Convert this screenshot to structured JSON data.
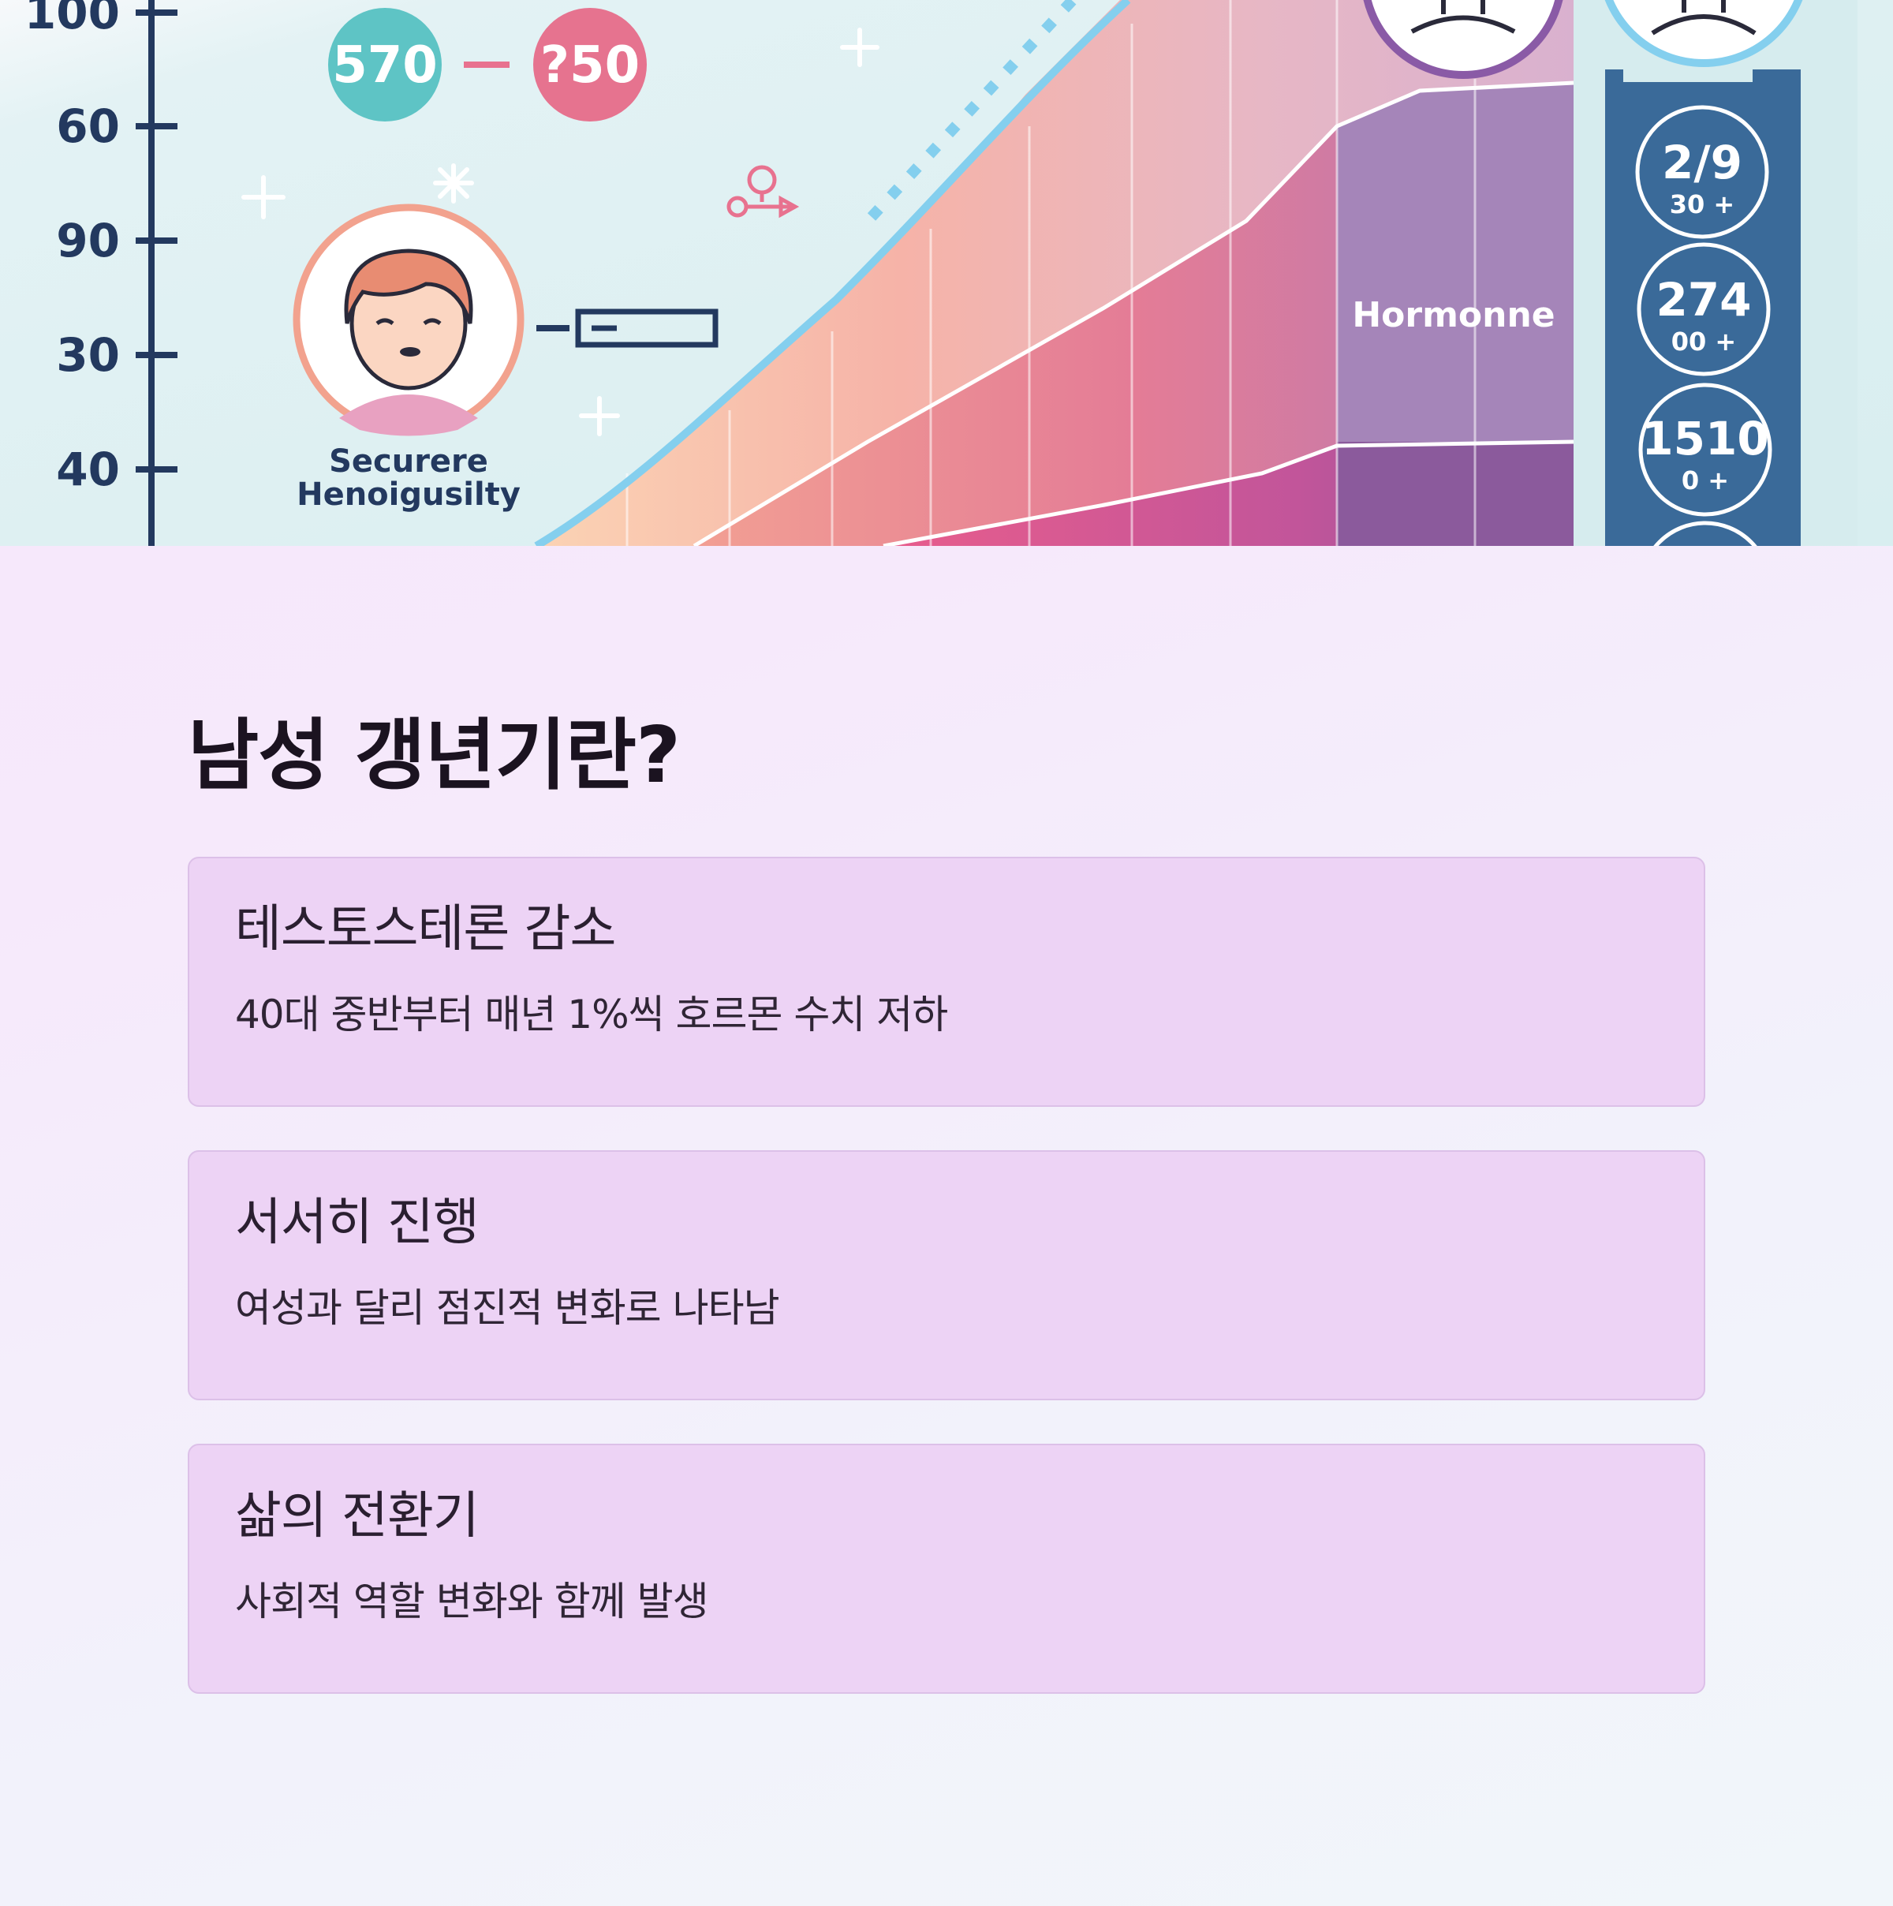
{
  "illustration": {
    "axis_ticks": [
      "100",
      "60",
      "90",
      "30",
      "40"
    ],
    "badge_left": "570",
    "badge_right": "?50",
    "avatar_caption_line1": "Securere",
    "avatar_caption_line2": "Henoigusilty",
    "band_label": "Hormonne",
    "stats": [
      {
        "value": "2/9",
        "sub": "30 +"
      },
      {
        "value": "274",
        "sub": "00 +"
      },
      {
        "value": "1510",
        "sub": "0 +"
      }
    ]
  },
  "section": {
    "title": "남성 갱년기란?",
    "cards": [
      {
        "title": "테스토스테론 감소",
        "desc": "40대 중반부터 매년 1%씩 호르몬 수치 저하"
      },
      {
        "title": "서서히 진행",
        "desc": "여성과 달리 점진적 변화로 나타남"
      },
      {
        "title": "삶의 전환기",
        "desc": "사회적 역할 변화와 함께 발생"
      }
    ]
  }
}
